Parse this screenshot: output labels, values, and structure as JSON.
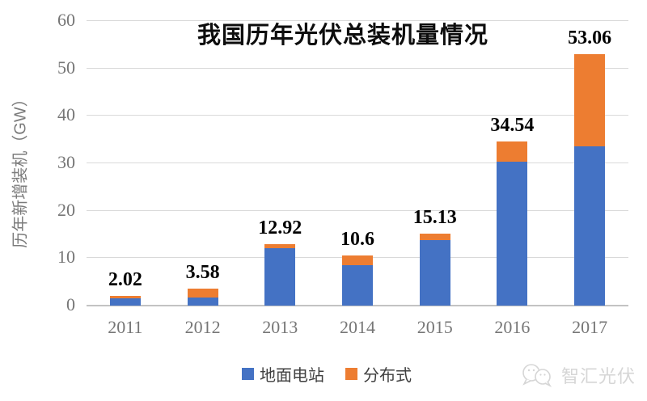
{
  "title": "我国历年光伏总装机量情况",
  "y_axis": {
    "title": "历年新增装机（GW）"
  },
  "legend": [
    {
      "label": "地面电站",
      "color": "#4472C4"
    },
    {
      "label": "分布式",
      "color": "#ED7D31"
    }
  ],
  "watermark": {
    "text": "智汇光伏",
    "icon": "chat-bubbles-icon"
  },
  "colors": {
    "ground": "#4472C4",
    "distributed": "#ED7D31",
    "gridline": "#d9d9d9",
    "axis_text": "#767676",
    "label_text": "#000000",
    "watermark": "#d6d6d6"
  },
  "chart_data": {
    "type": "bar",
    "stacked": true,
    "title": "我国历年光伏总装机量情况",
    "ylabel": "历年新增装机（GW）",
    "xlabel": "",
    "ylim": [
      0,
      60
    ],
    "y_ticks": [
      0,
      10,
      20,
      30,
      40,
      50,
      60
    ],
    "grid": true,
    "legend_position": "bottom",
    "categories": [
      "2011",
      "2012",
      "2013",
      "2014",
      "2015",
      "2016",
      "2017"
    ],
    "series": [
      {
        "name": "地面电站",
        "color": "#4472C4",
        "values": [
          1.5,
          1.7,
          12.12,
          8.55,
          13.74,
          30.3,
          33.62
        ]
      },
      {
        "name": "分布式",
        "color": "#ED7D31",
        "values": [
          0.52,
          1.88,
          0.8,
          2.05,
          1.39,
          4.24,
          19.44
        ]
      }
    ],
    "totals": [
      2.02,
      3.58,
      12.92,
      10.6,
      15.13,
      34.54,
      53.06
    ],
    "total_labels": [
      "2.02",
      "3.58",
      "12.92",
      "10.6",
      "15.13",
      "34.54",
      "53.06"
    ]
  }
}
